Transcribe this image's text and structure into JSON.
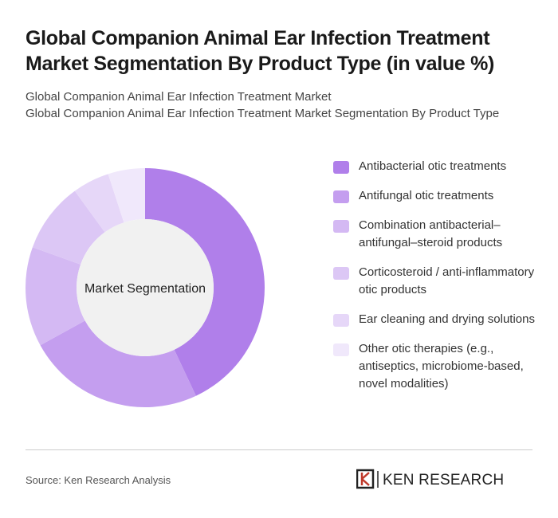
{
  "chart_data": {
    "type": "donut",
    "title": "Global Companion Animal Ear Infection Treatment Market Segmentation By Product Type (in value %)",
    "subtitle": [
      "Global Companion Animal Ear Infection Treatment Market",
      "Global Companion Animal Ear Infection Treatment Market Segmentation By Product Type"
    ],
    "center_label": "Market Segmentation",
    "categories": [
      "Antibacterial otic treatments",
      "Antifungal otic treatments",
      "Combination antibacterial–antifungal–steroid products",
      "Corticosteroid / anti-inflammatory otic products",
      "Ear cleaning and drying solutions",
      "Other otic therapies (e.g., antiseptics, microbiome-based, novel modalities)"
    ],
    "values": [
      43,
      24,
      13.5,
      9.5,
      5,
      5
    ],
    "colors": [
      "#b07fea",
      "#c49eef",
      "#d4b9f3",
      "#dcc7f5",
      "#e6d7f8",
      "#f0e8fb"
    ],
    "source": "Source: Ken Research Analysis",
    "brand": "KEN RESEARCH"
  }
}
